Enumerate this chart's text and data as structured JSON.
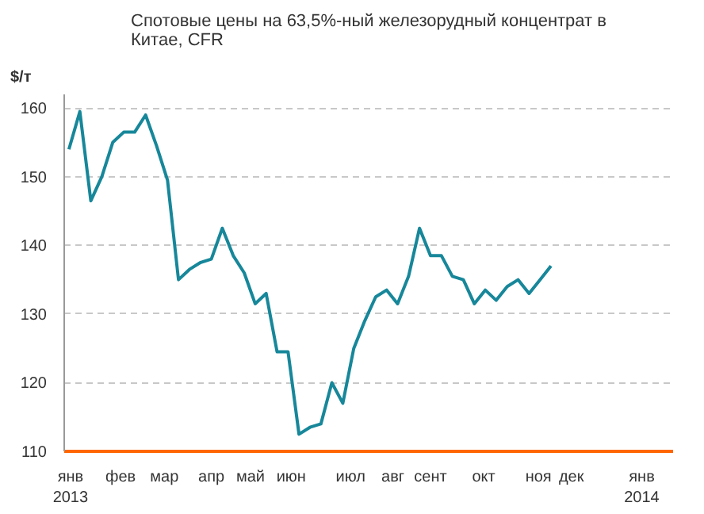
{
  "chart_data": {
    "type": "line",
    "title": "Спотовые цены на 63,5%-ный железорудный концентрат в Китае, CFR",
    "ylabel": "$/т",
    "x": [
      "2013-01-04",
      "2013-01-11",
      "2013-01-18",
      "2013-01-25",
      "2013-02-01",
      "2013-02-08",
      "2013-02-15",
      "2013-02-22",
      "2013-03-01",
      "2013-03-08",
      "2013-03-15",
      "2013-03-22",
      "2013-03-29",
      "2013-04-05",
      "2013-04-12",
      "2013-04-19",
      "2013-04-26",
      "2013-05-03",
      "2013-05-10",
      "2013-05-17",
      "2013-05-24",
      "2013-05-31",
      "2013-06-07",
      "2013-06-14",
      "2013-06-21",
      "2013-06-28",
      "2013-07-05",
      "2013-07-12",
      "2013-07-19",
      "2013-07-26",
      "2013-08-02",
      "2013-08-09",
      "2013-08-16",
      "2013-08-23",
      "2013-08-30",
      "2013-09-06",
      "2013-09-13",
      "2013-09-20",
      "2013-09-27",
      "2013-10-04",
      "2013-10-11",
      "2013-10-18",
      "2013-10-25",
      "2013-11-01",
      "2013-11-08"
    ],
    "series": [
      {
        "color": "#17879a",
        "values": [
          154,
          159.5,
          146.5,
          150,
          155,
          156.5,
          156.5,
          159,
          154.5,
          149.5,
          135,
          136.5,
          137.5,
          138,
          142.5,
          138.5,
          136,
          131.5,
          133,
          124.5,
          124.5,
          112.5,
          113.5,
          114,
          120,
          117,
          125,
          129,
          132.5,
          133.5,
          131.5,
          135.5,
          142.5,
          138.5,
          138.5,
          135.5,
          135,
          131.5,
          133.5,
          132,
          134,
          135,
          133,
          135,
          137
        ]
      }
    ],
    "xlim": [
      "2013-01-01",
      "2014-01-25"
    ],
    "xticks": [
      {
        "value": "2013-01-05",
        "label": "янв\n2013"
      },
      {
        "value": "2013-02-06",
        "label": "фев"
      },
      {
        "value": "2013-03-06",
        "label": "мар"
      },
      {
        "value": "2013-04-05",
        "label": "апр"
      },
      {
        "value": "2013-04-30",
        "label": "май"
      },
      {
        "value": "2013-05-26",
        "label": "июн"
      },
      {
        "value": "2013-07-03",
        "label": "июл"
      },
      {
        "value": "2013-07-30",
        "label": "авг"
      },
      {
        "value": "2013-08-23",
        "label": "сент"
      },
      {
        "value": "2013-09-26",
        "label": "окт"
      },
      {
        "value": "2013-10-31",
        "label": "ноя"
      },
      {
        "value": "2013-11-21",
        "label": "дек"
      },
      {
        "value": "2014-01-05",
        "label": "янв\n2014"
      }
    ],
    "ylim": [
      110,
      162
    ],
    "yticks": [
      110,
      120,
      130,
      140,
      150,
      160
    ],
    "grid": "y"
  }
}
